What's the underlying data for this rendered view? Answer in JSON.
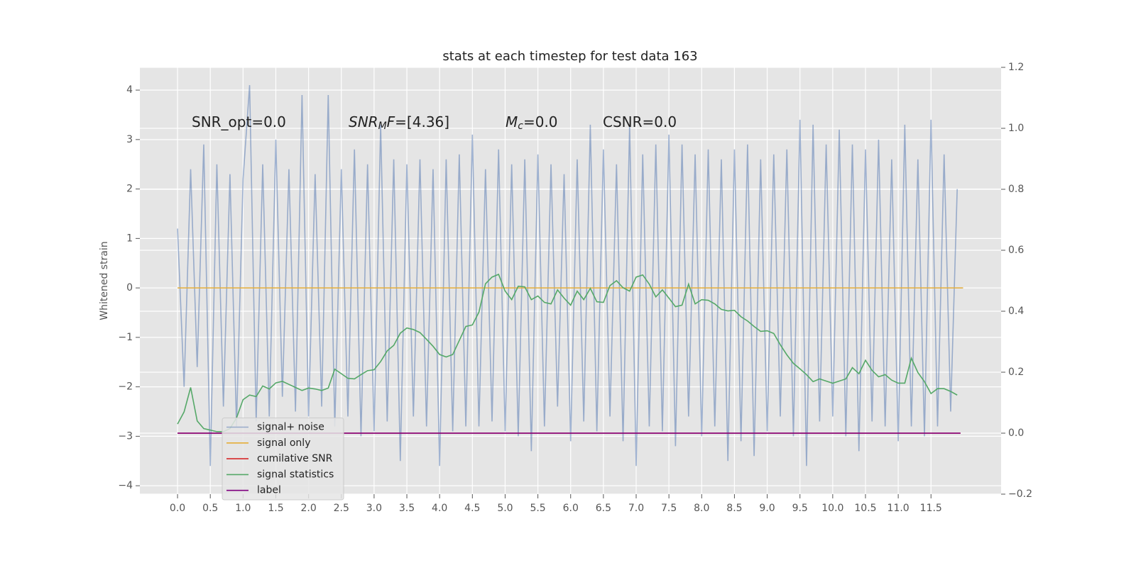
{
  "chart_data": {
    "type": "line",
    "title": "stats at each timestep for test data 163",
    "ylabel": "Whitened strain",
    "annotations": [
      {
        "parts": [
          {
            "text": "SNR_opt=0.0"
          }
        ]
      },
      {
        "parts": [
          {
            "text": "SNR",
            "italic": true
          },
          {
            "text": "M",
            "italic": true,
            "sub": true
          },
          {
            "text": "F",
            "italic": true
          },
          {
            "text": "=[4.36]"
          }
        ]
      },
      {
        "parts": [
          {
            "text": "M",
            "italic": true
          },
          {
            "text": "c",
            "italic": true,
            "sub": true
          },
          {
            "text": "=0.0"
          }
        ]
      },
      {
        "parts": [
          {
            "text": "CSNR=0.0"
          }
        ]
      }
    ],
    "grid": true,
    "legend": "lower left",
    "xlim": [
      -0.575,
      12.57
    ],
    "xticks": [
      {
        "value": 0,
        "label": "0.0"
      },
      {
        "value": 0.5,
        "label": "0.5"
      },
      {
        "value": 1,
        "label": "1.0"
      },
      {
        "value": 1.5,
        "label": "1.5"
      },
      {
        "value": 2,
        "label": "2.0"
      },
      {
        "value": 2.5,
        "label": "2.5"
      },
      {
        "value": 3,
        "label": "3.0"
      },
      {
        "value": 3.5,
        "label": "3.5"
      },
      {
        "value": 4,
        "label": "4.0"
      },
      {
        "value": 4.5,
        "label": "4.5"
      },
      {
        "value": 5,
        "label": "5.0"
      },
      {
        "value": 5.5,
        "label": "5.5"
      },
      {
        "value": 6,
        "label": "6.0"
      },
      {
        "value": 6.5,
        "label": "6.5"
      },
      {
        "value": 7,
        "label": "7.0"
      },
      {
        "value": 7.5,
        "label": "7.5"
      },
      {
        "value": 8,
        "label": "8.0"
      },
      {
        "value": 8.5,
        "label": "8.5"
      },
      {
        "value": 9,
        "label": "9.0"
      },
      {
        "value": 9.5,
        "label": "9.5"
      },
      {
        "value": 10,
        "label": "10.0"
      },
      {
        "value": 10.5,
        "label": "10.5"
      },
      {
        "value": 11,
        "label": "11.0"
      },
      {
        "value": 11.5,
        "label": "11.5"
      }
    ],
    "ylim": [
      -4.17,
      4.46
    ],
    "yticks": [
      {
        "value": -4,
        "label": "−4"
      },
      {
        "value": -3,
        "label": "−3"
      },
      {
        "value": -2,
        "label": "−2"
      },
      {
        "value": -1,
        "label": "−1"
      },
      0,
      1,
      2,
      3,
      4
    ],
    "y2lim": [
      -0.2,
      1.2
    ],
    "y2ticks": [
      {
        "value": -0.2,
        "label": "−0.2"
      },
      {
        "value": 0,
        "label": "0.0"
      },
      {
        "value": 0.2,
        "label": "0.2"
      },
      {
        "value": 0.4,
        "label": "0.4"
      },
      {
        "value": 0.6,
        "label": "0.6"
      },
      {
        "value": 0.8,
        "label": "0.8"
      },
      {
        "value": 1,
        "label": "1.0"
      },
      {
        "value": 1.2,
        "label": "1.2"
      }
    ],
    "x": [
      0.0,
      0.1,
      0.2,
      0.3,
      0.4,
      0.5,
      0.6,
      0.7,
      0.8,
      0.9,
      1.0,
      1.1,
      1.2,
      1.3,
      1.4,
      1.5,
      1.6,
      1.7,
      1.8,
      1.9,
      2.0,
      2.1,
      2.2,
      2.3,
      2.4,
      2.5,
      2.6,
      2.7,
      2.8,
      2.9,
      3.0,
      3.1,
      3.2,
      3.3,
      3.4,
      3.5,
      3.6,
      3.7,
      3.8,
      3.9,
      4.0,
      4.1,
      4.2,
      4.3,
      4.4,
      4.5,
      4.6,
      4.7,
      4.8,
      4.9,
      5.0,
      5.1,
      5.2,
      5.3,
      5.4,
      5.5,
      5.6,
      5.7,
      5.8,
      5.9,
      6.0,
      6.1,
      6.2,
      6.3,
      6.4,
      6.5,
      6.6,
      6.7,
      6.8,
      6.9,
      7.0,
      7.1,
      7.2,
      7.3,
      7.4,
      7.5,
      7.6,
      7.7,
      7.8,
      7.9,
      8.0,
      8.1,
      8.2,
      8.3,
      8.4,
      8.5,
      8.6,
      8.7,
      8.8,
      8.9,
      9.0,
      9.1,
      9.2,
      9.3,
      9.4,
      9.5,
      9.6,
      9.7,
      9.8,
      9.9,
      10.0,
      10.1,
      10.2,
      10.3,
      10.4,
      10.5,
      10.6,
      10.7,
      10.8,
      10.9,
      11.0,
      11.1,
      11.2,
      11.3,
      11.4,
      11.5,
      11.6,
      11.7,
      11.8,
      11.9
    ],
    "series": [
      {
        "name": "signal+ noise",
        "color": "#4c72b0",
        "alpha": 0.5,
        "values": [
          1.2,
          -2.0,
          2.4,
          -1.6,
          2.9,
          -3.6,
          2.5,
          -2.4,
          2.3,
          -2.8,
          2.2,
          4.1,
          -2.7,
          2.5,
          -2.6,
          3.0,
          -2.2,
          2.4,
          -2.5,
          3.9,
          -2.6,
          2.3,
          -2.4,
          3.9,
          -2.8,
          2.4,
          -2.6,
          2.8,
          -3.0,
          2.5,
          -2.9,
          3.3,
          -2.7,
          2.6,
          -3.5,
          2.5,
          -2.6,
          2.6,
          -2.8,
          2.4,
          -3.6,
          2.6,
          -2.9,
          2.7,
          -2.8,
          3.1,
          -2.8,
          2.4,
          -2.7,
          2.8,
          -2.9,
          2.5,
          -3.0,
          2.6,
          -3.3,
          2.7,
          -2.8,
          2.5,
          -2.4,
          2.3,
          -3.1,
          2.6,
          -2.7,
          3.3,
          -2.9,
          2.8,
          -2.6,
          2.5,
          -3.1,
          3.3,
          -3.6,
          2.7,
          -2.8,
          2.9,
          -2.9,
          3.1,
          -3.2,
          2.9,
          -2.6,
          2.7,
          -3.0,
          2.8,
          -2.8,
          2.6,
          -3.5,
          2.8,
          -3.1,
          2.9,
          -3.4,
          2.6,
          -2.9,
          2.7,
          -2.6,
          2.8,
          -3.0,
          3.4,
          -3.6,
          3.3,
          -2.7,
          2.9,
          -2.6,
          3.2,
          -3.0,
          2.9,
          -3.3,
          2.8,
          -2.7,
          3.0,
          -2.8,
          2.6,
          -3.1,
          3.3,
          -2.8,
          2.6,
          -3.0,
          3.4,
          -2.8,
          2.7,
          -2.5,
          2.0
        ]
      },
      {
        "name": "signal only",
        "color": "#e5ae38",
        "x": [
          0.0,
          11.99
        ],
        "values": [
          0,
          0
        ]
      },
      {
        "name": "cumilative SNR",
        "color": "#d62728",
        "axis": "y2",
        "x": [
          0.0,
          11.95
        ],
        "values": [
          0,
          0
        ]
      },
      {
        "name": "signal statistics",
        "color": "#55a868",
        "axis": "y2",
        "values": [
          0.03,
          0.07,
          0.15,
          0.04,
          0.015,
          0.01,
          0.005,
          0.005,
          0.015,
          0.05,
          0.11,
          0.125,
          0.12,
          0.155,
          0.145,
          0.165,
          0.17,
          0.16,
          0.15,
          0.14,
          0.148,
          0.145,
          0.14,
          0.148,
          0.21,
          0.195,
          0.18,
          0.178,
          0.192,
          0.205,
          0.208,
          0.235,
          0.27,
          0.288,
          0.328,
          0.345,
          0.34,
          0.33,
          0.308,
          0.285,
          0.258,
          0.25,
          0.258,
          0.304,
          0.35,
          0.355,
          0.397,
          0.49,
          0.512,
          0.521,
          0.466,
          0.438,
          0.482,
          0.48,
          0.438,
          0.45,
          0.429,
          0.424,
          0.47,
          0.443,
          0.42,
          0.466,
          0.438,
          0.475,
          0.431,
          0.429,
          0.484,
          0.5,
          0.477,
          0.466,
          0.512,
          0.519,
          0.489,
          0.447,
          0.47,
          0.443,
          0.415,
          0.42,
          0.489,
          0.424,
          0.438,
          0.436,
          0.424,
          0.406,
          0.401,
          0.403,
          0.382,
          0.368,
          0.35,
          0.334,
          0.336,
          0.327,
          0.29,
          0.257,
          0.229,
          0.211,
          0.192,
          0.169,
          0.178,
          0.171,
          0.164,
          0.171,
          0.178,
          0.215,
          0.195,
          0.239,
          0.206,
          0.185,
          0.192,
          0.174,
          0.164,
          0.164,
          0.246,
          0.199,
          0.169,
          0.13,
          0.146,
          0.146,
          0.137,
          0.125
        ]
      },
      {
        "name": "label",
        "color": "#800080",
        "axis": "y2",
        "x": [
          0.0,
          11.95
        ],
        "values": [
          0,
          0
        ]
      }
    ]
  }
}
